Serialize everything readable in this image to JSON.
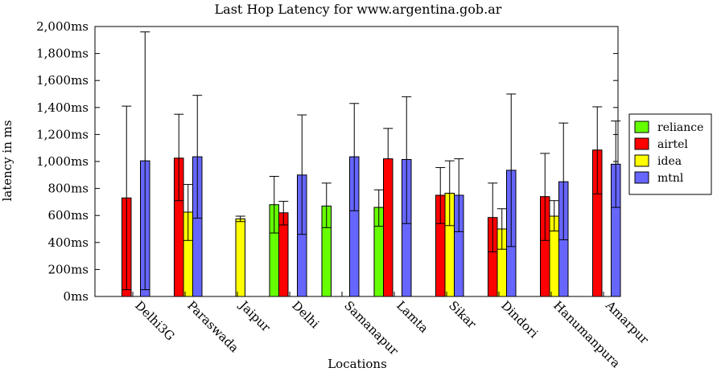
{
  "chart_data": {
    "type": "bar",
    "title": "Last Hop Latency for www.argentina.gob.ar",
    "xlabel": "Locations",
    "ylabel": "latency in ms",
    "ylim": [
      0,
      2000
    ],
    "yticks": [
      0,
      200,
      400,
      600,
      800,
      1000,
      1200,
      1400,
      1600,
      1800,
      2000
    ],
    "ytick_labels": [
      "0ms",
      "200ms",
      "400ms",
      "600ms",
      "800ms",
      "1,000ms",
      "1,200ms",
      "1,400ms",
      "1,600ms",
      "1,800ms",
      "2,000ms"
    ],
    "categories": [
      "Delhi3G",
      "Paraswada",
      "Jaipur",
      "Delhi",
      "Samanapur",
      "Lamta",
      "Sikar",
      "Dindori",
      "Hanumanpura",
      "Amarpur"
    ],
    "legend_position": "right",
    "grid": false,
    "error_bars": true,
    "series": [
      {
        "name": "reliance",
        "color": "#66ff00",
        "values": [
          null,
          null,
          null,
          680,
          670,
          660,
          null,
          null,
          null,
          null
        ],
        "err_low": [
          null,
          null,
          null,
          470,
          510,
          520,
          null,
          null,
          null,
          null
        ],
        "err_high": [
          null,
          null,
          null,
          890,
          840,
          790,
          null,
          null,
          null,
          null
        ]
      },
      {
        "name": "airtel",
        "color": "#ff0000",
        "values": [
          730,
          1025,
          null,
          620,
          null,
          1020,
          750,
          585,
          740,
          1085
        ],
        "err_low": [
          50,
          710,
          null,
          530,
          null,
          null,
          540,
          330,
          415,
          760
        ],
        "err_high": [
          1410,
          1350,
          null,
          705,
          null,
          1245,
          955,
          840,
          1060,
          1405
        ]
      },
      {
        "name": "idea",
        "color": "#ffff00",
        "values": [
          null,
          625,
          575,
          null,
          null,
          null,
          765,
          500,
          595,
          null
        ],
        "err_low": [
          null,
          415,
          555,
          null,
          null,
          null,
          525,
          350,
          485,
          null
        ],
        "err_high": [
          null,
          830,
          595,
          null,
          null,
          null,
          1005,
          650,
          710,
          null
        ]
      },
      {
        "name": "mtnl",
        "color": "#6666ff",
        "values": [
          1005,
          1035,
          null,
          900,
          1035,
          1015,
          750,
          935,
          850,
          980
        ],
        "err_low": [
          50,
          580,
          null,
          460,
          635,
          540,
          480,
          370,
          420,
          660
        ],
        "err_high": [
          1960,
          1490,
          null,
          1345,
          1430,
          1480,
          1020,
          1500,
          1285,
          1300
        ]
      }
    ]
  }
}
